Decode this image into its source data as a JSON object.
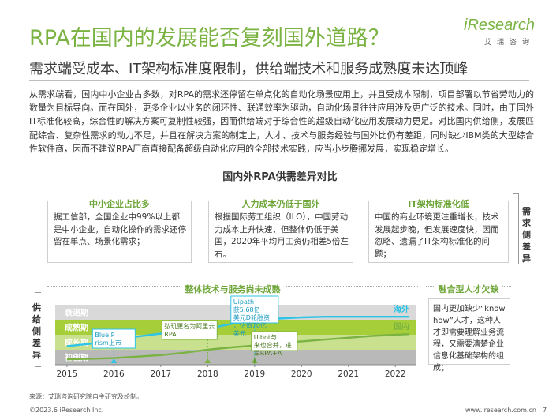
{
  "header": {
    "title": "RPA在国内的发展能否复刻国外道路？",
    "subtitle": "需求端受成本、IT架构标准度限制，供给端技术和服务成熟度未达顶峰"
  },
  "logo": {
    "brand": "iResearch",
    "sub": "艾瑞咨询"
  },
  "body": {
    "paragraph": "从需求端看，国内中小企业占多数，对RPA的需求还停留在单点化的自动化场景应用上，并且受成本限制，项目部署以节省劳动力的数量为目标导向。而在国外，更多企业以业务的闭环性、联通效率为驱动，自动化场景往往应用涉及更广泛的技术。同时，由于国外IT标准化较高，综合性的解决方案可复制性较强，因而供给端对于综合性的超级自动化应用发展动力更足。对比国内供给侧，发展匹配综合、复杂性需求的动力不足，并且在解决方案的制定上，人才、技术与服务经验与国外比仍有差距，同时缺少IBM类的大型综合性软件商，因而不建议RPA厂商直接配备超级自动化应用的全部技术实践，应当小步腾挪发展，实现稳定增长。"
  },
  "comparison": {
    "title": "国内外RPA供需差异对比",
    "demand_side_label": "需求侧差异",
    "supply_side_label": "供给侧差异",
    "demand_boxes": [
      {
        "heading": "中小企业占比多",
        "text": "据工信部，全国企业中99%以上都是中小企业，自动化操作的需求还停留在单点、场景化需求；"
      },
      {
        "heading": "人力成本仍低于国外",
        "text": "根据国际劳工组织（ILO），中国劳动力成本上升快速，但整体仍低于美国，2020年平均月工资仍相差5倍左右。"
      },
      {
        "heading": "IT架构标准化低",
        "text": "中国的商业环境更注重增长，技术发展起步晚，但发展速度快，因而忽略、遗漏了IT架构标准化的问题；"
      }
    ],
    "supply_box": {
      "heading": "整体技术与服务尚未成熟"
    },
    "talent_box": {
      "heading": "融合型人才欠缺",
      "text": "国内更加缺少“know how”人才，这种人才即需要理解业务流程，又需要清楚企业信息化基础架构的组成；"
    }
  },
  "chart_data": {
    "type": "line",
    "x_ticks": [
      "2015",
      "2016",
      "2017",
      "2018",
      "2019",
      "2020",
      "2021",
      "2022"
    ],
    "stage_bands": [
      "衰退期",
      "成熟期",
      "成长期",
      "初创期"
    ],
    "band_colors": [
      "#d9d9d9",
      "#a6ce39",
      "#c9e08f",
      "#b9b9b9"
    ],
    "series": [
      {
        "name": "海外",
        "color": "#2ec4e6",
        "x": [
          2015,
          2015.5,
          2016,
          2016.5,
          2017,
          2017.5,
          2018,
          2018.5,
          2019,
          2019.5,
          2020,
          2020.5,
          2021,
          2021.5,
          2022,
          2022.3
        ],
        "y": [
          1.55,
          1.75,
          2.05,
          2.35,
          2.6,
          2.8,
          3.0,
          3.4,
          3.7,
          3.85,
          3.95,
          4.0,
          4.0,
          4.0,
          4.0,
          4.0
        ]
      },
      {
        "name": "国内",
        "color": "#7ab342",
        "x": [
          2015,
          2016,
          2017,
          2017.5,
          2018,
          2018.5,
          2019,
          2019.5,
          2020,
          2020.5,
          2021,
          2021.5,
          2022,
          2022.3
        ],
        "y": [
          0.45,
          0.55,
          0.8,
          1.0,
          1.25,
          1.45,
          1.6,
          1.8,
          1.95,
          2.1,
          2.25,
          2.4,
          2.5,
          2.55
        ]
      }
    ],
    "annotations": [
      {
        "text": "Blue Prism上市",
        "x": 2016
      },
      {
        "text": "弘玑更名为阿里云RPA",
        "x": 2018
      },
      {
        "text": "Uipath获5.68亿美元D轮融资，估值70亿美元",
        "x": 2019
      },
      {
        "text": "Uibot与来也合并，进军RPA+AI",
        "x": 2019
      }
    ],
    "xlim": [
      2014.75,
      2022.45
    ],
    "ylim": [
      0,
      5
    ]
  },
  "footer": {
    "source": "来源：艾瑞咨询研究院自主研究及绘制。",
    "copyright": "©2023.6 iResearch Inc.",
    "site": "www.iresearch.com.cn",
    "page": "7"
  }
}
